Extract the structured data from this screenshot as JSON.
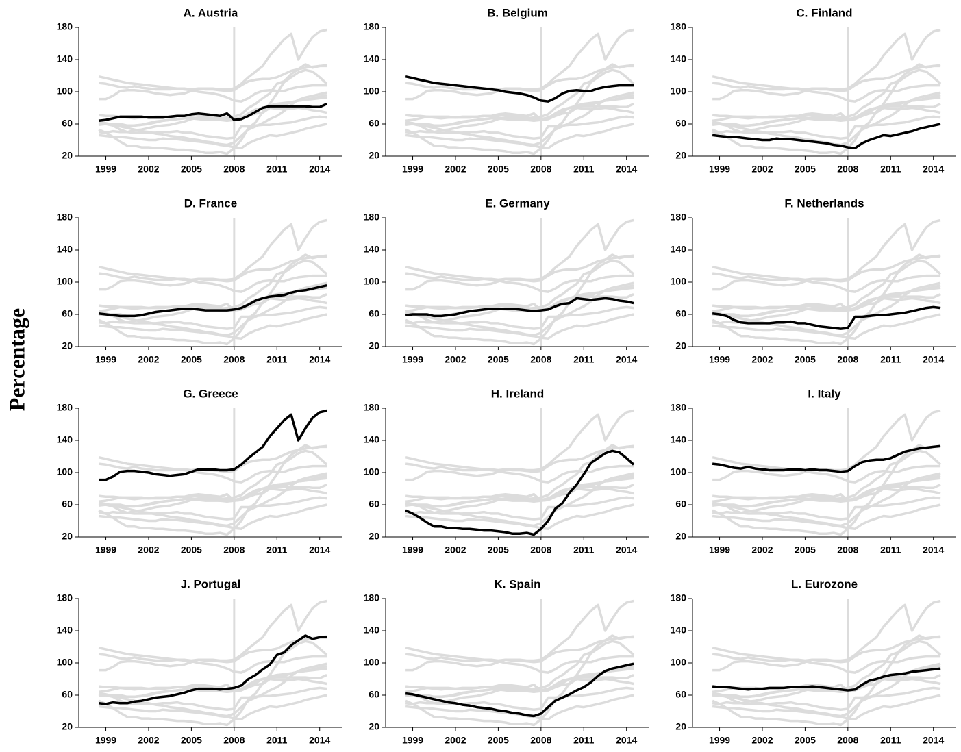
{
  "y_label": "Percentage",
  "context_color": "#dcdcdc",
  "chart_data": [
    {
      "type": "line",
      "title": "A. Austria",
      "x": [
        1998.5,
        1999,
        1999.5,
        2000,
        2000.5,
        2001,
        2001.5,
        2002,
        2002.5,
        2003,
        2003.5,
        2004,
        2004.5,
        2005,
        2005.5,
        2006,
        2006.5,
        2007,
        2007.5,
        2008,
        2008.5,
        2009,
        2009.5,
        2010,
        2010.5,
        2011,
        2011.5,
        2012,
        2012.5,
        2013,
        2013.5,
        2014,
        2014.5
      ],
      "xlim": [
        1997.1,
        2015.6
      ],
      "xticks": [
        1999,
        2002,
        2005,
        2008,
        2011,
        2014
      ],
      "ylim": [
        20,
        180
      ],
      "yticks": [
        20,
        60,
        100,
        140,
        180
      ],
      "reference_x": 2008,
      "series": [
        {
          "color": "#000000",
          "values": [
            64,
            65,
            67,
            69,
            69,
            69,
            69,
            68,
            68,
            68,
            69,
            70,
            70,
            72,
            73,
            72,
            71,
            70,
            73,
            65,
            66,
            70,
            75,
            80,
            82,
            82,
            82,
            82,
            82,
            82,
            81,
            81,
            85
          ]
        }
      ]
    },
    {
      "type": "line",
      "title": "B. Belgium",
      "x": [
        1998.5,
        1999,
        1999.5,
        2000,
        2000.5,
        2001,
        2001.5,
        2002,
        2002.5,
        2003,
        2003.5,
        2004,
        2004.5,
        2005,
        2005.5,
        2006,
        2006.5,
        2007,
        2007.5,
        2008,
        2008.5,
        2009,
        2009.5,
        2010,
        2010.5,
        2011,
        2011.5,
        2012,
        2012.5,
        2013,
        2013.5,
        2014,
        2014.5
      ],
      "xlim": [
        1997.1,
        2015.6
      ],
      "xticks": [
        1999,
        2002,
        2005,
        2008,
        2011,
        2014
      ],
      "ylim": [
        20,
        180
      ],
      "yticks": [
        20,
        60,
        100,
        140,
        180
      ],
      "reference_x": 2008,
      "series": [
        {
          "color": "#000000",
          "values": [
            119,
            117,
            115,
            113,
            111,
            110,
            109,
            108,
            107,
            106,
            105,
            104,
            103,
            102,
            100,
            99,
            98,
            96,
            93,
            89,
            88,
            92,
            98,
            101,
            102,
            101,
            101,
            104,
            106,
            107,
            108,
            108,
            108
          ]
        }
      ]
    },
    {
      "type": "line",
      "title": "C. Finland",
      "x": [
        1998.5,
        1999,
        1999.5,
        2000,
        2000.5,
        2001,
        2001.5,
        2002,
        2002.5,
        2003,
        2003.5,
        2004,
        2004.5,
        2005,
        2005.5,
        2006,
        2006.5,
        2007,
        2007.5,
        2008,
        2008.5,
        2009,
        2009.5,
        2010,
        2010.5,
        2011,
        2011.5,
        2012,
        2012.5,
        2013,
        2013.5,
        2014,
        2014.5
      ],
      "xlim": [
        1997.1,
        2015.6
      ],
      "xticks": [
        1999,
        2002,
        2005,
        2008,
        2011,
        2014
      ],
      "ylim": [
        20,
        180
      ],
      "yticks": [
        20,
        60,
        100,
        140,
        180
      ],
      "reference_x": 2008,
      "series": [
        {
          "color": "#000000",
          "values": [
            46,
            45,
            44,
            44,
            43,
            42,
            41,
            40,
            40,
            42,
            41,
            41,
            40,
            39,
            38,
            37,
            36,
            34,
            33,
            31,
            30,
            36,
            40,
            43,
            46,
            45,
            47,
            49,
            51,
            54,
            56,
            58,
            60
          ]
        }
      ]
    },
    {
      "type": "line",
      "title": "D. France",
      "x": [
        1998.5,
        1999,
        1999.5,
        2000,
        2000.5,
        2001,
        2001.5,
        2002,
        2002.5,
        2003,
        2003.5,
        2004,
        2004.5,
        2005,
        2005.5,
        2006,
        2006.5,
        2007,
        2007.5,
        2008,
        2008.5,
        2009,
        2009.5,
        2010,
        2010.5,
        2011,
        2011.5,
        2012,
        2012.5,
        2013,
        2013.5,
        2014,
        2014.5
      ],
      "xlim": [
        1997.1,
        2015.6
      ],
      "xticks": [
        1999,
        2002,
        2005,
        2008,
        2011,
        2014
      ],
      "ylim": [
        20,
        180
      ],
      "yticks": [
        20,
        60,
        100,
        140,
        180
      ],
      "reference_x": 2008,
      "series": [
        {
          "color": "#000000",
          "values": [
            61,
            60,
            59,
            58,
            58,
            58,
            59,
            61,
            63,
            64,
            65,
            66,
            67,
            67,
            66,
            65,
            65,
            65,
            65,
            66,
            68,
            72,
            77,
            80,
            82,
            83,
            84,
            87,
            89,
            90,
            92,
            94,
            96
          ]
        }
      ]
    },
    {
      "type": "line",
      "title": "E. Germany",
      "x": [
        1998.5,
        1999,
        1999.5,
        2000,
        2000.5,
        2001,
        2001.5,
        2002,
        2002.5,
        2003,
        2003.5,
        2004,
        2004.5,
        2005,
        2005.5,
        2006,
        2006.5,
        2007,
        2007.5,
        2008,
        2008.5,
        2009,
        2009.5,
        2010,
        2010.5,
        2011,
        2011.5,
        2012,
        2012.5,
        2013,
        2013.5,
        2014,
        2014.5
      ],
      "xlim": [
        1997.1,
        2015.6
      ],
      "xticks": [
        1999,
        2002,
        2005,
        2008,
        2011,
        2014
      ],
      "ylim": [
        20,
        180
      ],
      "yticks": [
        20,
        60,
        100,
        140,
        180
      ],
      "reference_x": 2008,
      "series": [
        {
          "color": "#000000",
          "values": [
            59,
            60,
            60,
            60,
            58,
            58,
            59,
            60,
            62,
            64,
            65,
            66,
            67,
            67,
            67,
            67,
            66,
            65,
            64,
            65,
            66,
            70,
            73,
            74,
            80,
            79,
            78,
            79,
            80,
            79,
            77,
            76,
            74
          ]
        }
      ]
    },
    {
      "type": "line",
      "title": "F. Netherlands",
      "x": [
        1998.5,
        1999,
        1999.5,
        2000,
        2000.5,
        2001,
        2001.5,
        2002,
        2002.5,
        2003,
        2003.5,
        2004,
        2004.5,
        2005,
        2005.5,
        2006,
        2006.5,
        2007,
        2007.5,
        2008,
        2008.5,
        2009,
        2009.5,
        2010,
        2010.5,
        2011,
        2011.5,
        2012,
        2012.5,
        2013,
        2013.5,
        2014,
        2014.5
      ],
      "xlim": [
        1997.1,
        2015.6
      ],
      "xticks": [
        1999,
        2002,
        2005,
        2008,
        2011,
        2014
      ],
      "ylim": [
        20,
        180
      ],
      "yticks": [
        20,
        60,
        100,
        140,
        180
      ],
      "reference_x": 2008,
      "series": [
        {
          "color": "#000000",
          "values": [
            61,
            60,
            58,
            53,
            50,
            49,
            49,
            49,
            49,
            50,
            50,
            51,
            49,
            49,
            47,
            45,
            44,
            43,
            42,
            43,
            57,
            57,
            58,
            59,
            59,
            60,
            61,
            62,
            64,
            66,
            68,
            69,
            68
          ]
        }
      ]
    },
    {
      "type": "line",
      "title": "G. Greece",
      "x": [
        1998.5,
        1999,
        1999.5,
        2000,
        2000.5,
        2001,
        2001.5,
        2002,
        2002.5,
        2003,
        2003.5,
        2004,
        2004.5,
        2005,
        2005.5,
        2006,
        2006.5,
        2007,
        2007.5,
        2008,
        2008.5,
        2009,
        2009.5,
        2010,
        2010.5,
        2011,
        2011.5,
        2012,
        2012.5,
        2013,
        2013.5,
        2014,
        2014.5
      ],
      "xlim": [
        1997.1,
        2015.6
      ],
      "xticks": [
        1999,
        2002,
        2005,
        2008,
        2011,
        2014
      ],
      "ylim": [
        20,
        180
      ],
      "yticks": [
        20,
        60,
        100,
        140,
        180
      ],
      "reference_x": 2008,
      "series": [
        {
          "color": "#000000",
          "values": [
            91,
            91,
            95,
            101,
            102,
            102,
            101,
            100,
            98,
            97,
            96,
            97,
            98,
            101,
            104,
            104,
            104,
            103,
            103,
            104,
            110,
            118,
            125,
            132,
            145,
            155,
            165,
            172,
            140,
            155,
            168,
            175,
            177
          ]
        }
      ]
    },
    {
      "type": "line",
      "title": "H. Ireland",
      "x": [
        1998.5,
        1999,
        1999.5,
        2000,
        2000.5,
        2001,
        2001.5,
        2002,
        2002.5,
        2003,
        2003.5,
        2004,
        2004.5,
        2005,
        2005.5,
        2006,
        2006.5,
        2007,
        2007.5,
        2008,
        2008.5,
        2009,
        2009.5,
        2010,
        2010.5,
        2011,
        2011.5,
        2012,
        2012.5,
        2013,
        2013.5,
        2014,
        2014.5
      ],
      "xlim": [
        1997.1,
        2015.6
      ],
      "xticks": [
        1999,
        2002,
        2005,
        2008,
        2011,
        2014
      ],
      "ylim": [
        20,
        180
      ],
      "yticks": [
        20,
        60,
        100,
        140,
        180
      ],
      "reference_x": 2008,
      "series": [
        {
          "color": "#000000",
          "values": [
            53,
            49,
            44,
            38,
            33,
            33,
            31,
            31,
            30,
            30,
            29,
            28,
            28,
            27,
            26,
            24,
            24,
            25,
            23,
            30,
            40,
            55,
            62,
            75,
            85,
            98,
            112,
            118,
            124,
            127,
            125,
            118,
            110
          ]
        }
      ]
    },
    {
      "type": "line",
      "title": "I. Italy",
      "x": [
        1998.5,
        1999,
        1999.5,
        2000,
        2000.5,
        2001,
        2001.5,
        2002,
        2002.5,
        2003,
        2003.5,
        2004,
        2004.5,
        2005,
        2005.5,
        2006,
        2006.5,
        2007,
        2007.5,
        2008,
        2008.5,
        2009,
        2009.5,
        2010,
        2010.5,
        2011,
        2011.5,
        2012,
        2012.5,
        2013,
        2013.5,
        2014,
        2014.5
      ],
      "xlim": [
        1997.1,
        2015.6
      ],
      "xticks": [
        1999,
        2002,
        2005,
        2008,
        2011,
        2014
      ],
      "ylim": [
        20,
        180
      ],
      "yticks": [
        20,
        60,
        100,
        140,
        180
      ],
      "reference_x": 2008,
      "series": [
        {
          "color": "#000000",
          "values": [
            111,
            110,
            108,
            106,
            105,
            107,
            105,
            104,
            103,
            103,
            103,
            104,
            104,
            103,
            104,
            103,
            103,
            102,
            101,
            102,
            108,
            113,
            115,
            116,
            116,
            118,
            122,
            126,
            128,
            130,
            131,
            132,
            133
          ]
        }
      ]
    },
    {
      "type": "line",
      "title": "J. Portugal",
      "x": [
        1998.5,
        1999,
        1999.5,
        2000,
        2000.5,
        2001,
        2001.5,
        2002,
        2002.5,
        2003,
        2003.5,
        2004,
        2004.5,
        2005,
        2005.5,
        2006,
        2006.5,
        2007,
        2007.5,
        2008,
        2008.5,
        2009,
        2009.5,
        2010,
        2010.5,
        2011,
        2011.5,
        2012,
        2012.5,
        2013,
        2013.5,
        2014,
        2014.5
      ],
      "xlim": [
        1997.1,
        2015.6
      ],
      "xticks": [
        1999,
        2002,
        2005,
        2008,
        2011,
        2014
      ],
      "ylim": [
        20,
        180
      ],
      "yticks": [
        20,
        60,
        100,
        140,
        180
      ],
      "reference_x": 2008,
      "series": [
        {
          "color": "#000000",
          "values": [
            50,
            49,
            51,
            50,
            50,
            52,
            53,
            55,
            57,
            58,
            59,
            61,
            63,
            66,
            68,
            68,
            68,
            67,
            68,
            69,
            72,
            80,
            85,
            92,
            98,
            110,
            113,
            122,
            128,
            134,
            130,
            132,
            132
          ]
        }
      ]
    },
    {
      "type": "line",
      "title": "K. Spain",
      "x": [
        1998.5,
        1999,
        1999.5,
        2000,
        2000.5,
        2001,
        2001.5,
        2002,
        2002.5,
        2003,
        2003.5,
        2004,
        2004.5,
        2005,
        2005.5,
        2006,
        2006.5,
        2007,
        2007.5,
        2008,
        2008.5,
        2009,
        2009.5,
        2010,
        2010.5,
        2011,
        2011.5,
        2012,
        2012.5,
        2013,
        2013.5,
        2014,
        2014.5
      ],
      "xlim": [
        1997.1,
        2015.6
      ],
      "xticks": [
        1999,
        2002,
        2005,
        2008,
        2011,
        2014
      ],
      "ylim": [
        20,
        180
      ],
      "yticks": [
        20,
        60,
        100,
        140,
        180
      ],
      "reference_x": 2008,
      "series": [
        {
          "color": "#000000",
          "values": [
            62,
            61,
            59,
            57,
            55,
            53,
            51,
            50,
            48,
            47,
            45,
            44,
            43,
            41,
            40,
            38,
            37,
            35,
            34,
            37,
            45,
            53,
            57,
            61,
            66,
            70,
            76,
            84,
            90,
            93,
            95,
            97,
            99
          ]
        }
      ]
    },
    {
      "type": "line",
      "title": "L. Eurozone",
      "x": [
        1998.5,
        1999,
        1999.5,
        2000,
        2000.5,
        2001,
        2001.5,
        2002,
        2002.5,
        2003,
        2003.5,
        2004,
        2004.5,
        2005,
        2005.5,
        2006,
        2006.5,
        2007,
        2007.5,
        2008,
        2008.5,
        2009,
        2009.5,
        2010,
        2010.5,
        2011,
        2011.5,
        2012,
        2012.5,
        2013,
        2013.5,
        2014,
        2014.5
      ],
      "xlim": [
        1997.1,
        2015.6
      ],
      "xticks": [
        1999,
        2002,
        2005,
        2008,
        2011,
        2014
      ],
      "ylim": [
        20,
        180
      ],
      "yticks": [
        20,
        60,
        100,
        140,
        180
      ],
      "reference_x": 2008,
      "series": [
        {
          "color": "#000000",
          "values": [
            71,
            70,
            70,
            69,
            68,
            67,
            68,
            68,
            69,
            69,
            69,
            70,
            70,
            70,
            71,
            70,
            69,
            68,
            67,
            66,
            67,
            73,
            78,
            80,
            83,
            85,
            86,
            87,
            89,
            90,
            91,
            92,
            93
          ]
        }
      ]
    }
  ]
}
